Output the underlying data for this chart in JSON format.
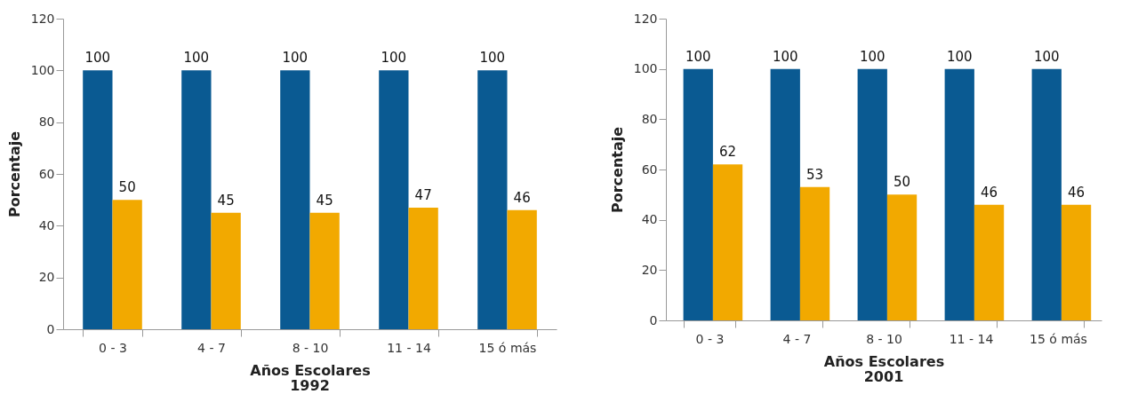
{
  "chart_data": [
    {
      "type": "bar",
      "title": "1992",
      "xlabel": "Años Escolares",
      "ylabel": "Porcentaje",
      "categories": [
        "0 - 3",
        "4 - 7",
        "8 - 10",
        "11 - 14",
        "15 ó más"
      ],
      "series": [
        {
          "color": "#0a5a92",
          "values": [
            100,
            100,
            100,
            100,
            100
          ]
        },
        {
          "color": "#f2a900",
          "values": [
            50,
            45,
            45,
            47,
            46
          ]
        }
      ],
      "ylim": [
        0,
        120
      ],
      "yticks": [
        0,
        20,
        40,
        60,
        80,
        100,
        120
      ],
      "data_labels": true,
      "grid": false,
      "legend": false
    },
    {
      "type": "bar",
      "title": "2001",
      "xlabel": "Años Escolares",
      "ylabel": "Porcentaje",
      "categories": [
        "0 - 3",
        "4 - 7",
        "8 - 10",
        "11 - 14",
        "15 ó más"
      ],
      "series": [
        {
          "color": "#0a5a92",
          "values": [
            100,
            100,
            100,
            100,
            100
          ]
        },
        {
          "color": "#f2a900",
          "values": [
            62,
            53,
            50,
            46,
            46
          ]
        }
      ],
      "ylim": [
        0,
        120
      ],
      "yticks": [
        0,
        20,
        40,
        60,
        80,
        100,
        120
      ],
      "data_labels": true,
      "grid": false,
      "legend": false
    }
  ]
}
